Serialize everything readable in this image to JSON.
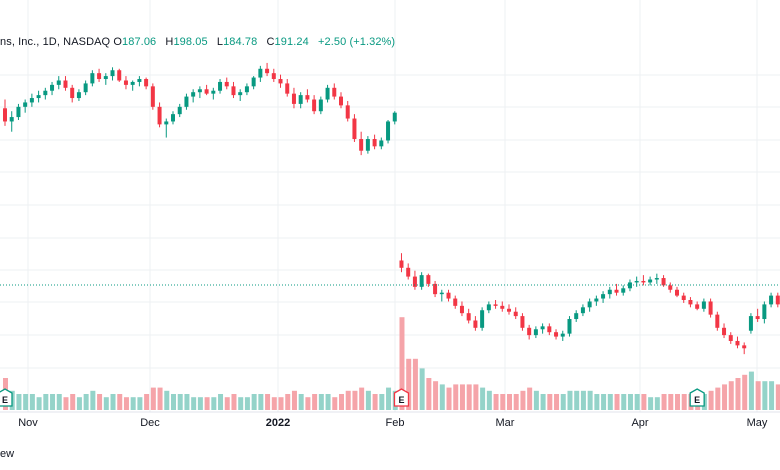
{
  "legend": {
    "symbol": "ns, Inc., 1D, NASDAQ",
    "o_label": "O",
    "o_value": "187.06",
    "h_label": "H",
    "h_value": "198.05",
    "l_label": "L",
    "l_value": "184.78",
    "c_label": "C",
    "c_value": "191.24",
    "change": "+2.50 (+1.32%)"
  },
  "footer_text": "ew",
  "colors": {
    "up": "#089981",
    "down": "#f23645",
    "vol_up": "#94d3c9",
    "vol_down": "#f5a4a9",
    "grid": "#eef0f3",
    "text": "#131722"
  },
  "chart_data": {
    "type": "candlestick",
    "x_ticks": [
      "Nov",
      "Dec",
      "2022",
      "Feb",
      "Mar",
      "Apr",
      "May"
    ],
    "earnings_markers": [
      {
        "label": "E",
        "date": "2021-10-25"
      },
      {
        "label": "E",
        "date": "2022-02-01"
      },
      {
        "label": "E",
        "date": "2022-04-28"
      }
    ],
    "last_close": 191.24,
    "candles": [
      [
        312,
        318,
        300,
        303,
        1.0
      ],
      [
        303,
        310,
        296,
        306,
        0.6
      ],
      [
        306,
        315,
        304,
        313,
        0.5
      ],
      [
        313,
        318,
        309,
        316,
        0.5
      ],
      [
        316,
        322,
        313,
        319,
        0.5
      ],
      [
        319,
        324,
        316,
        321,
        0.4
      ],
      [
        321,
        326,
        318,
        324,
        0.5
      ],
      [
        324,
        330,
        321,
        328,
        0.5
      ],
      [
        328,
        334,
        325,
        331,
        0.5
      ],
      [
        331,
        334,
        324,
        326,
        0.4
      ],
      [
        326,
        328,
        316,
        319,
        0.5
      ],
      [
        319,
        325,
        317,
        323,
        0.4
      ],
      [
        323,
        331,
        321,
        329,
        0.5
      ],
      [
        329,
        338,
        327,
        336,
        0.6
      ],
      [
        336,
        339,
        330,
        332,
        0.5
      ],
      [
        332,
        336,
        328,
        334,
        0.4
      ],
      [
        334,
        340,
        331,
        338,
        0.5
      ],
      [
        338,
        339,
        330,
        331,
        0.5
      ],
      [
        331,
        334,
        325,
        328,
        0.4
      ],
      [
        328,
        331,
        324,
        330,
        0.4
      ],
      [
        330,
        334,
        327,
        332,
        0.4
      ],
      [
        332,
        333,
        325,
        327,
        0.5
      ],
      [
        327,
        329,
        311,
        313,
        0.7
      ],
      [
        313,
        316,
        299,
        301,
        0.7
      ],
      [
        301,
        305,
        292,
        303,
        0.6
      ],
      [
        303,
        310,
        301,
        308,
        0.5
      ],
      [
        308,
        315,
        306,
        313,
        0.5
      ],
      [
        313,
        322,
        311,
        320,
        0.5
      ],
      [
        320,
        325,
        316,
        323,
        0.4
      ],
      [
        323,
        327,
        319,
        325,
        0.4
      ],
      [
        325,
        328,
        321,
        322,
        0.4
      ],
      [
        322,
        326,
        318,
        324,
        0.4
      ],
      [
        324,
        332,
        322,
        330,
        0.5
      ],
      [
        330,
        333,
        325,
        327,
        0.4
      ],
      [
        327,
        330,
        319,
        321,
        0.5
      ],
      [
        321,
        325,
        317,
        323,
        0.4
      ],
      [
        323,
        329,
        321,
        327,
        0.4
      ],
      [
        327,
        334,
        325,
        333,
        0.5
      ],
      [
        333,
        341,
        330,
        339,
        0.5
      ],
      [
        339,
        343,
        334,
        336,
        0.5
      ],
      [
        336,
        339,
        330,
        332,
        0.4
      ],
      [
        332,
        335,
        326,
        329,
        0.4
      ],
      [
        329,
        332,
        320,
        322,
        0.5
      ],
      [
        322,
        326,
        312,
        315,
        0.6
      ],
      [
        315,
        323,
        312,
        321,
        0.5
      ],
      [
        321,
        325,
        316,
        318,
        0.4
      ],
      [
        318,
        321,
        308,
        310,
        0.5
      ],
      [
        310,
        320,
        308,
        318,
        0.5
      ],
      [
        318,
        328,
        316,
        326,
        0.5
      ],
      [
        326,
        329,
        318,
        320,
        0.4
      ],
      [
        320,
        323,
        312,
        314,
        0.5
      ],
      [
        314,
        317,
        303,
        305,
        0.6
      ],
      [
        305,
        308,
        289,
        291,
        0.6
      ],
      [
        291,
        296,
        280,
        283,
        0.7
      ],
      [
        283,
        293,
        281,
        291,
        0.6
      ],
      [
        291,
        294,
        284,
        286,
        0.5
      ],
      [
        286,
        292,
        284,
        290,
        0.5
      ],
      [
        290,
        304,
        288,
        303,
        0.7
      ],
      [
        303,
        310,
        301,
        309,
        0.6
      ],
      [
        208,
        213,
        200,
        203,
        2.9
      ],
      [
        203,
        206,
        195,
        197,
        1.6
      ],
      [
        197,
        201,
        188,
        190,
        1.6
      ],
      [
        190,
        200,
        188,
        198,
        1.3
      ],
      [
        198,
        199,
        190,
        192,
        1.0
      ],
      [
        192,
        194,
        183,
        185,
        0.9
      ],
      [
        185,
        188,
        180,
        186,
        0.8
      ],
      [
        186,
        188,
        180,
        182,
        0.7
      ],
      [
        182,
        184,
        175,
        177,
        0.8
      ],
      [
        177,
        180,
        170,
        172,
        0.8
      ],
      [
        172,
        175,
        165,
        167,
        0.8
      ],
      [
        167,
        170,
        160,
        162,
        0.8
      ],
      [
        162,
        176,
        160,
        174,
        0.7
      ],
      [
        174,
        180,
        172,
        178,
        0.6
      ],
      [
        178,
        181,
        175,
        177,
        0.5
      ],
      [
        177,
        180,
        173,
        175,
        0.5
      ],
      [
        175,
        178,
        171,
        173,
        0.5
      ],
      [
        173,
        176,
        168,
        170,
        0.5
      ],
      [
        170,
        172,
        160,
        162,
        0.6
      ],
      [
        162,
        164,
        154,
        157,
        0.7
      ],
      [
        157,
        163,
        155,
        161,
        0.6
      ],
      [
        161,
        165,
        158,
        163,
        0.5
      ],
      [
        163,
        165,
        157,
        159,
        0.5
      ],
      [
        159,
        161,
        154,
        156,
        0.5
      ],
      [
        156,
        160,
        153,
        158,
        0.5
      ],
      [
        158,
        170,
        156,
        168,
        0.6
      ],
      [
        168,
        174,
        166,
        172,
        0.6
      ],
      [
        172,
        178,
        170,
        176,
        0.6
      ],
      [
        176,
        182,
        173,
        180,
        0.6
      ],
      [
        180,
        184,
        177,
        182,
        0.5
      ],
      [
        182,
        187,
        179,
        185,
        0.5
      ],
      [
        185,
        190,
        182,
        188,
        0.5
      ],
      [
        188,
        192,
        184,
        186,
        0.5
      ],
      [
        186,
        191,
        184,
        189,
        0.5
      ],
      [
        189,
        195,
        187,
        193,
        0.5
      ],
      [
        193,
        197,
        190,
        194,
        0.5
      ],
      [
        194,
        198,
        191,
        193,
        0.5
      ],
      [
        193,
        197,
        191,
        195,
        0.4
      ],
      [
        195,
        199,
        192,
        196,
        0.4
      ],
      [
        196,
        198,
        190,
        191,
        0.5
      ],
      [
        191,
        193,
        186,
        188,
        0.5
      ],
      [
        188,
        190,
        183,
        184,
        0.5
      ],
      [
        184,
        186,
        179,
        181,
        0.5
      ],
      [
        181,
        183,
        176,
        178,
        0.5
      ],
      [
        178,
        180,
        174,
        175,
        0.5
      ],
      [
        175,
        182,
        173,
        180,
        0.5
      ],
      [
        180,
        182,
        169,
        171,
        0.6
      ],
      [
        171,
        173,
        160,
        162,
        0.7
      ],
      [
        162,
        165,
        155,
        157,
        0.8
      ],
      [
        157,
        159,
        151,
        153,
        0.9
      ],
      [
        153,
        156,
        148,
        150,
        1.0
      ],
      [
        150,
        152,
        144,
        148,
        1.1
      ],
      [
        160,
        172,
        158,
        170,
        1.2
      ],
      [
        170,
        175,
        166,
        168,
        0.9
      ],
      [
        168,
        180,
        165,
        178,
        0.9
      ],
      [
        178,
        186,
        176,
        184,
        0.9
      ],
      [
        184,
        186,
        176,
        178,
        0.8
      ],
      [
        178,
        180,
        170,
        172,
        0.8
      ]
    ]
  }
}
